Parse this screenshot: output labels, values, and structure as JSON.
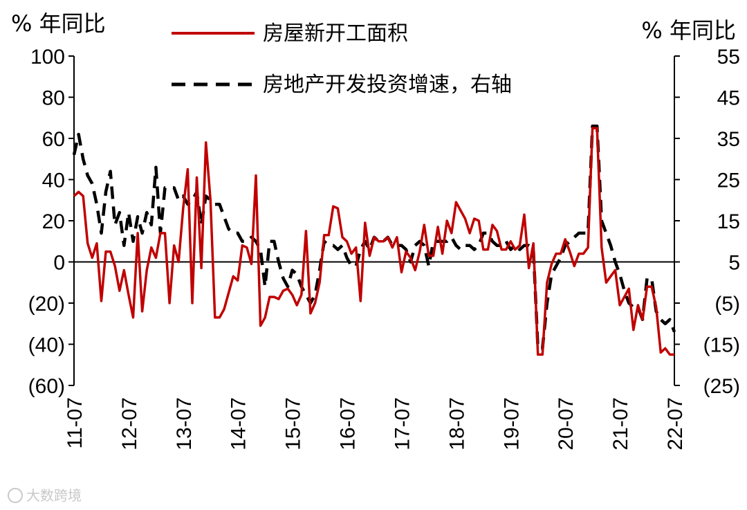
{
  "chart_data": {
    "type": "line",
    "left_unit": "% 年同比",
    "right_unit": "% 年同比",
    "left_axis": {
      "range": [
        -60,
        100
      ],
      "ticks": [
        "100",
        "80",
        "60",
        "40",
        "20",
        "0",
        "(20)",
        "(40)",
        "(60)"
      ]
    },
    "right_axis": {
      "range": [
        -25,
        55
      ],
      "ticks": [
        "55",
        "45",
        "35",
        "25",
        "15",
        "5",
        "(5)",
        "(15)",
        "(25)"
      ]
    },
    "x_tick_labels": [
      "11-07",
      "12-07",
      "13-07",
      "14-07",
      "15-07",
      "16-07",
      "17-07",
      "18-07",
      "19-07",
      "20-07",
      "21-07",
      "22-07"
    ],
    "x_range": [
      "2011-07",
      "2022-07"
    ],
    "series": [
      {
        "name": "房屋新开工面积",
        "axis": "left",
        "color": "#c00000",
        "style": "solid",
        "points": [
          [
            "2011-07",
            32
          ],
          [
            "2011-08",
            34
          ],
          [
            "2011-09",
            32
          ],
          [
            "2011-10",
            9
          ],
          [
            "2011-11",
            2
          ],
          [
            "2011-12",
            9
          ],
          [
            "2012-01",
            -19
          ],
          [
            "2012-02",
            5
          ],
          [
            "2012-03",
            5
          ],
          [
            "2012-04",
            -2
          ],
          [
            "2012-05",
            -14
          ],
          [
            "2012-06",
            -4
          ],
          [
            "2012-07",
            -16
          ],
          [
            "2012-08",
            -27
          ],
          [
            "2012-09",
            14
          ],
          [
            "2012-10",
            -24
          ],
          [
            "2012-11",
            -4
          ],
          [
            "2012-12",
            7
          ],
          [
            "2013-01",
            2
          ],
          [
            "2013-02",
            14
          ],
          [
            "2013-03",
            14
          ],
          [
            "2013-04",
            -20
          ],
          [
            "2013-05",
            8
          ],
          [
            "2013-06",
            0
          ],
          [
            "2013-07",
            26
          ],
          [
            "2013-08",
            45
          ],
          [
            "2013-09",
            -20
          ],
          [
            "2013-10",
            41
          ],
          [
            "2013-11",
            -3
          ],
          [
            "2013-12",
            58
          ],
          [
            "2014-01",
            30
          ],
          [
            "2014-02",
            -27
          ],
          [
            "2014-03",
            -27
          ],
          [
            "2014-04",
            -23
          ],
          [
            "2014-05",
            -15
          ],
          [
            "2014-06",
            -7
          ],
          [
            "2014-07",
            -9
          ],
          [
            "2014-08",
            8
          ],
          [
            "2014-09",
            7
          ],
          [
            "2014-10",
            -1
          ],
          [
            "2014-11",
            42
          ],
          [
            "2014-12",
            -31
          ],
          [
            "2015-01",
            -27
          ],
          [
            "2015-02",
            -17
          ],
          [
            "2015-03",
            -17
          ],
          [
            "2015-04",
            -18
          ],
          [
            "2015-05",
            -14
          ],
          [
            "2015-06",
            -13
          ],
          [
            "2015-07",
            -16
          ],
          [
            "2015-08",
            -21
          ],
          [
            "2015-09",
            -16
          ],
          [
            "2015-10",
            15
          ],
          [
            "2015-11",
            -25
          ],
          [
            "2015-12",
            -20
          ],
          [
            "2016-01",
            -10
          ],
          [
            "2016-02",
            13
          ],
          [
            "2016-03",
            13
          ],
          [
            "2016-04",
            27
          ],
          [
            "2016-05",
            26
          ],
          [
            "2016-06",
            12
          ],
          [
            "2016-07",
            10
          ],
          [
            "2016-08",
            4
          ],
          [
            "2016-09",
            7
          ],
          [
            "2016-10",
            -19
          ],
          [
            "2016-11",
            19
          ],
          [
            "2016-12",
            3
          ],
          [
            "2017-01",
            12
          ],
          [
            "2017-02",
            10
          ],
          [
            "2017-03",
            10
          ],
          [
            "2017-04",
            12
          ],
          [
            "2017-05",
            7
          ],
          [
            "2017-06",
            12
          ],
          [
            "2017-07",
            -5
          ],
          [
            "2017-08",
            5
          ],
          [
            "2017-09",
            2
          ],
          [
            "2017-10",
            -4
          ],
          [
            "2017-11",
            5
          ],
          [
            "2017-12",
            18
          ],
          [
            "2018-01",
            3
          ],
          [
            "2018-02",
            3
          ],
          [
            "2018-03",
            17
          ],
          [
            "2018-04",
            4
          ],
          [
            "2018-05",
            20
          ],
          [
            "2018-06",
            14
          ],
          [
            "2018-07",
            29
          ],
          [
            "2018-08",
            25
          ],
          [
            "2018-09",
            21
          ],
          [
            "2018-10",
            14
          ],
          [
            "2018-11",
            21
          ],
          [
            "2018-12",
            20
          ],
          [
            "2019-01",
            6
          ],
          [
            "2019-02",
            6
          ],
          [
            "2019-03",
            18
          ],
          [
            "2019-04",
            15
          ],
          [
            "2019-05",
            6
          ],
          [
            "2019-06",
            6
          ],
          [
            "2019-07",
            10
          ],
          [
            "2019-08",
            6
          ],
          [
            "2019-09",
            8
          ],
          [
            "2019-10",
            23
          ],
          [
            "2019-11",
            -3
          ],
          [
            "2019-12",
            9
          ],
          [
            "2020-01",
            -45
          ],
          [
            "2020-02",
            -45
          ],
          [
            "2020-03",
            -10
          ],
          [
            "2020-04",
            -1
          ],
          [
            "2020-05",
            4
          ],
          [
            "2020-06",
            4
          ],
          [
            "2020-07",
            11
          ],
          [
            "2020-08",
            5
          ],
          [
            "2020-09",
            -2
          ],
          [
            "2020-10",
            4
          ],
          [
            "2020-11",
            4
          ],
          [
            "2020-12",
            7
          ],
          [
            "2021-01",
            65
          ],
          [
            "2021-02",
            65
          ],
          [
            "2021-03",
            7
          ],
          [
            "2021-04",
            -10
          ],
          [
            "2021-05",
            -7
          ],
          [
            "2021-06",
            -4
          ],
          [
            "2021-07",
            -21
          ],
          [
            "2021-08",
            -17
          ],
          [
            "2021-09",
            -13
          ],
          [
            "2021-10",
            -33
          ],
          [
            "2021-11",
            -21
          ],
          [
            "2021-12",
            -28
          ],
          [
            "2022-01",
            -12
          ],
          [
            "2022-02",
            -12
          ],
          [
            "2022-03",
            -22
          ],
          [
            "2022-04",
            -44
          ],
          [
            "2022-05",
            -42
          ],
          [
            "2022-06",
            -45
          ],
          [
            "2022-07",
            -45
          ]
        ]
      },
      {
        "name": "房地产开发投资增速，右轴",
        "axis": "right",
        "color": "#000000",
        "style": "dashed",
        "points": [
          [
            "2011-07",
            31
          ],
          [
            "2011-08",
            36
          ],
          [
            "2011-09",
            30
          ],
          [
            "2011-10",
            26
          ],
          [
            "2011-11",
            24
          ],
          [
            "2011-12",
            19
          ],
          [
            "2012-01",
            12
          ],
          [
            "2012-02",
            22
          ],
          [
            "2012-03",
            27
          ],
          [
            "2012-04",
            14
          ],
          [
            "2012-05",
            17
          ],
          [
            "2012-06",
            9
          ],
          [
            "2012-07",
            17
          ],
          [
            "2012-08",
            10
          ],
          [
            "2012-09",
            16
          ],
          [
            "2012-10",
            12
          ],
          [
            "2012-11",
            17
          ],
          [
            "2012-12",
            14
          ],
          [
            "2013-01",
            28
          ],
          [
            "2013-02",
            12
          ],
          [
            "2013-03",
            23
          ],
          [
            "2013-04",
            23
          ],
          [
            "2013-05",
            23
          ],
          [
            "2013-06",
            20
          ],
          [
            "2013-07",
            21
          ],
          [
            "2013-08",
            19
          ],
          [
            "2013-09",
            20
          ],
          [
            "2013-10",
            22
          ],
          [
            "2013-11",
            14
          ],
          [
            "2013-12",
            21
          ],
          [
            "2014-01",
            20
          ],
          [
            "2014-02",
            19
          ],
          [
            "2014-03",
            19
          ],
          [
            "2014-04",
            16
          ],
          [
            "2014-05",
            13
          ],
          [
            "2014-06",
            12
          ],
          [
            "2014-07",
            12
          ],
          [
            "2014-08",
            10
          ],
          [
            "2014-09",
            10
          ],
          [
            "2014-10",
            11
          ],
          [
            "2014-11",
            10
          ],
          [
            "2014-12",
            8
          ],
          [
            "2015-01",
            -1
          ],
          [
            "2015-02",
            10
          ],
          [
            "2015-03",
            10
          ],
          [
            "2015-04",
            5
          ],
          [
            "2015-05",
            1
          ],
          [
            "2015-06",
            -1
          ],
          [
            "2015-07",
            3
          ],
          [
            "2015-08",
            2
          ],
          [
            "2015-09",
            -1
          ],
          [
            "2015-10",
            -3
          ],
          [
            "2015-11",
            -5
          ],
          [
            "2015-12",
            -3
          ],
          [
            "2016-01",
            3
          ],
          [
            "2016-02",
            10
          ],
          [
            "2016-03",
            9
          ],
          [
            "2016-04",
            9
          ],
          [
            "2016-05",
            8
          ],
          [
            "2016-06",
            9
          ],
          [
            "2016-07",
            6
          ],
          [
            "2016-08",
            4
          ],
          [
            "2016-09",
            4
          ],
          [
            "2016-10",
            8
          ],
          [
            "2016-11",
            10
          ],
          [
            "2016-12",
            8
          ],
          [
            "2017-01",
            11
          ],
          [
            "2017-02",
            10
          ],
          [
            "2017-03",
            10
          ],
          [
            "2017-04",
            11
          ],
          [
            "2017-05",
            9
          ],
          [
            "2017-06",
            9
          ],
          [
            "2017-07",
            9
          ],
          [
            "2017-08",
            8
          ],
          [
            "2017-09",
            5
          ],
          [
            "2017-10",
            9
          ],
          [
            "2017-11",
            10
          ],
          [
            "2017-12",
            9
          ],
          [
            "2018-01",
            4
          ],
          [
            "2018-02",
            10
          ],
          [
            "2018-03",
            10
          ],
          [
            "2018-04",
            10
          ],
          [
            "2018-05",
            10
          ],
          [
            "2018-06",
            11
          ],
          [
            "2018-07",
            9
          ],
          [
            "2018-08",
            8
          ],
          [
            "2018-09",
            9
          ],
          [
            "2018-10",
            9
          ],
          [
            "2018-11",
            8
          ],
          [
            "2018-12",
            9
          ],
          [
            "2019-01",
            12
          ],
          [
            "2019-02",
            12
          ],
          [
            "2019-03",
            10
          ],
          [
            "2019-04",
            9
          ],
          [
            "2019-05",
            9
          ],
          [
            "2019-06",
            10
          ],
          [
            "2019-07",
            8
          ],
          [
            "2019-08",
            9
          ],
          [
            "2019-09",
            8
          ],
          [
            "2019-10",
            9
          ],
          [
            "2019-11",
            9
          ],
          [
            "2019-12",
            8
          ],
          [
            "2020-01",
            -16
          ],
          [
            "2020-02",
            -16
          ],
          [
            "2020-03",
            -5
          ],
          [
            "2020-04",
            2
          ],
          [
            "2020-05",
            4
          ],
          [
            "2020-06",
            6
          ],
          [
            "2020-07",
            9
          ],
          [
            "2020-08",
            10
          ],
          [
            "2020-09",
            11
          ],
          [
            "2020-10",
            12
          ],
          [
            "2020-11",
            12
          ],
          [
            "2020-12",
            12
          ],
          [
            "2021-01",
            38
          ],
          [
            "2021-02",
            38
          ],
          [
            "2021-03",
            15
          ],
          [
            "2021-04",
            12
          ],
          [
            "2021-05",
            9
          ],
          [
            "2021-06",
            5
          ],
          [
            "2021-07",
            2
          ],
          [
            "2021-08",
            -2
          ],
          [
            "2021-09",
            -5
          ],
          [
            "2021-10",
            -6
          ],
          [
            "2021-11",
            -6
          ],
          [
            "2021-12",
            -9
          ],
          [
            "2022-01",
            1
          ],
          [
            "2022-02",
            1
          ],
          [
            "2022-03",
            -7
          ],
          [
            "2022-04",
            -9
          ],
          [
            "2022-05",
            -10
          ],
          [
            "2022-06",
            -9
          ],
          [
            "2022-07",
            -12
          ]
        ]
      }
    ],
    "zero_line": true,
    "grid": false
  },
  "watermark": {
    "logo_text": "大数跨境"
  }
}
